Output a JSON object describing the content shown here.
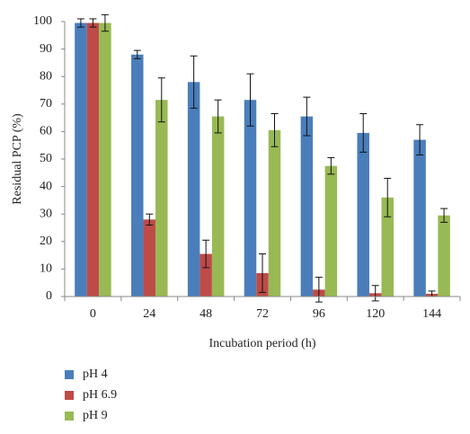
{
  "chart_data": {
    "type": "bar",
    "ylabel": "Residual PCP (%)",
    "xlabel": "Incubation period (h)",
    "categories": [
      "0",
      "24",
      "48",
      "72",
      "96",
      "120",
      "144"
    ],
    "series": [
      {
        "name": "pH 4",
        "color": "#4a7ebb",
        "values": [
          99.5,
          88,
          78,
          71.5,
          65.5,
          59.5,
          57
        ],
        "errors": [
          1.5,
          1.5,
          9.5,
          9.5,
          7,
          7,
          5.5
        ]
      },
      {
        "name": "pH 6.9",
        "color": "#be4b48",
        "values": [
          99.5,
          28,
          15.5,
          8.5,
          2.5,
          1.2,
          1
        ],
        "errors": [
          1.5,
          2,
          5,
          7,
          4.5,
          2.8,
          1
        ]
      },
      {
        "name": "pH 9",
        "color": "#98b954",
        "values": [
          99.5,
          71.5,
          65.5,
          60.5,
          47.5,
          36,
          29.5
        ],
        "errors": [
          3,
          8,
          6,
          6,
          3,
          7,
          2.5
        ]
      }
    ],
    "ylim": [
      0,
      100
    ],
    "yticks": [
      0,
      10,
      20,
      30,
      40,
      50,
      60,
      70,
      80,
      90,
      100
    ],
    "legend": "bottom-left"
  }
}
